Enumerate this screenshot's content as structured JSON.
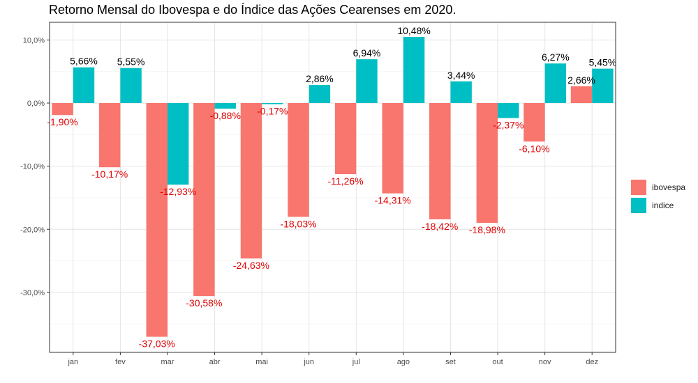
{
  "chart_data": {
    "type": "bar",
    "title": "Retorno Mensal do Ibovespa e do Índice das Ações Cearenses em 2020.",
    "xlabel": "",
    "ylabel": "",
    "categories": [
      "jan",
      "fev",
      "mar",
      "abr",
      "mai",
      "jun",
      "jul",
      "ago",
      "set",
      "out",
      "nov",
      "dez"
    ],
    "series": [
      {
        "name": "ibovespa",
        "color": "#F8766D",
        "values": [
          -1.9,
          -10.17,
          -37.03,
          -30.58,
          -24.63,
          -18.03,
          -11.26,
          -14.31,
          -18.42,
          -18.98,
          -6.1,
          2.66
        ],
        "labels": [
          "-1,90%",
          "-10,17%",
          "-37,03%",
          "-30,58%",
          "-24,63%",
          "-18,03%",
          "-11,26%",
          "-14,31%",
          "-18,42%",
          "-18,98%",
          "-6,10%",
          "2,66%"
        ]
      },
      {
        "name": "indice",
        "color": "#00BFC4",
        "values": [
          5.66,
          5.55,
          -12.93,
          -0.88,
          -0.17,
          2.86,
          6.94,
          10.48,
          3.44,
          -2.37,
          6.27,
          5.45
        ],
        "labels": [
          "5,66%",
          "5,55%",
          "-12,93%",
          "-0,88%",
          "-0,17%",
          "2,86%",
          "6,94%",
          "10,48%",
          "3,44%",
          "-2,37%",
          "6,27%",
          "5,45%"
        ]
      }
    ],
    "ylim": [
      -39.5,
      12.8
    ],
    "yticks": [
      10,
      0,
      -10,
      -20,
      -30
    ],
    "ytick_labels": [
      "10,0%",
      "0,0%",
      "-10,0%",
      "-20,0%",
      "-30,0%"
    ],
    "label_colors": {
      "positive": "#000000",
      "negative": "#E00000"
    },
    "grid": true,
    "legend_position": "right"
  }
}
